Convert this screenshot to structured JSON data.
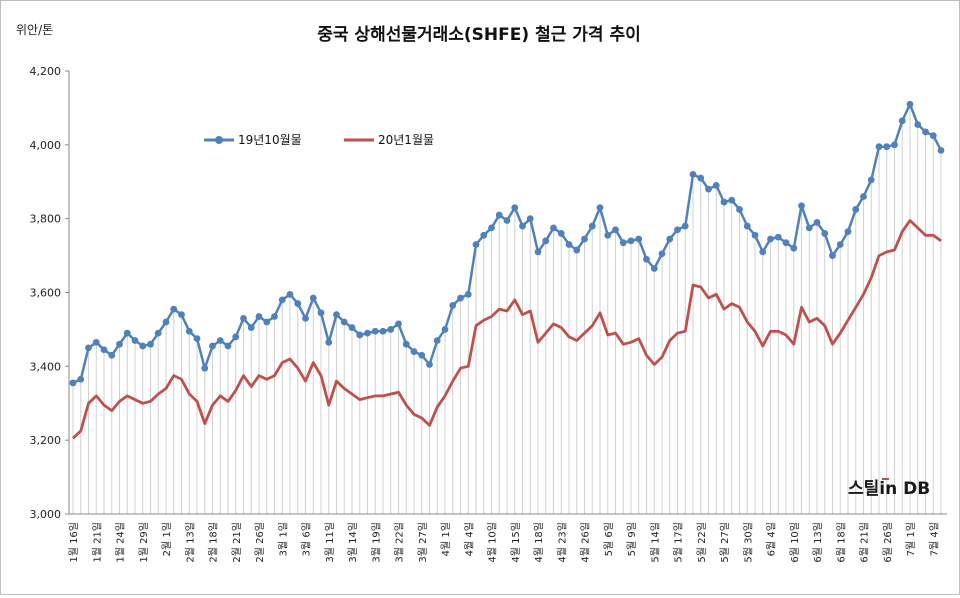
{
  "chart_data": {
    "type": "line",
    "title": "중국 상해선물거래소(SHFE) 철근 가격 추이",
    "unit_label": "위안/톤",
    "ylim": [
      3000,
      4200
    ],
    "yticks": [
      "3,000",
      "3,200",
      "3,400",
      "3,600",
      "3,800",
      "4,000",
      "4,200"
    ],
    "grid": false,
    "legend_position": "top-left",
    "brand": "스틸in DB",
    "x_labels": [
      "1월 16일",
      "1월 21일",
      "1월 24일",
      "1월 29일",
      "2월 1일",
      "2월 13일",
      "2월 18일",
      "2월 21일",
      "2월 26일",
      "3월 1일",
      "3월 6일",
      "3월 11일",
      "3월 14일",
      "3월 19일",
      "3월 22일",
      "3월 27일",
      "4월 1일",
      "4월 4일",
      "4월 10일",
      "4월 15일",
      "4월 18일",
      "4월 23일",
      "4월 26일",
      "5월 6일",
      "5월 9일",
      "5월 14일",
      "5월 17일",
      "5월 22일",
      "5월 27일",
      "5월 30일",
      "6월 4일",
      "6월 10일",
      "6월 13일",
      "6월 18일",
      "6월 21일",
      "6월 26일",
      "7월 1일",
      "7월 4일"
    ],
    "series": [
      {
        "name": "19년10월물",
        "color": "#4f81bd",
        "values": [
          3355,
          3365,
          3450,
          3465,
          3445,
          3430,
          3460,
          3490,
          3470,
          3455,
          3460,
          3490,
          3520,
          3555,
          3540,
          3495,
          3475,
          3395,
          3455,
          3470,
          3455,
          3480,
          3530,
          3505,
          3535,
          3520,
          3535,
          3580,
          3595,
          3570,
          3530,
          3585,
          3545,
          3465,
          3540,
          3520,
          3505,
          3485,
          3490,
          3495,
          3495,
          3500,
          3515,
          3460,
          3440,
          3430,
          3405,
          3470,
          3500,
          3565,
          3585,
          3595,
          3730,
          3755,
          3775,
          3810,
          3795,
          3830,
          3780,
          3800,
          3710,
          3740,
          3775,
          3760,
          3730,
          3715,
          3745,
          3780,
          3830,
          3755,
          3770,
          3735,
          3740,
          3745,
          3690,
          3665,
          3705,
          3745,
          3770,
          3780,
          3920,
          3910,
          3880,
          3890,
          3845,
          3850,
          3825,
          3780,
          3755,
          3710,
          3745,
          3750,
          3735,
          3720,
          3835,
          3775,
          3790,
          3760,
          3700,
          3730,
          3765,
          3825,
          3860,
          3905,
          3995,
          3995,
          4000,
          4065,
          4110,
          4055,
          4035,
          4025,
          3985
        ]
      },
      {
        "name": "20년1월물",
        "color": "#c0504d",
        "values": [
          3205,
          3225,
          3300,
          3320,
          3295,
          3280,
          3305,
          3320,
          3310,
          3300,
          3305,
          3325,
          3340,
          3375,
          3365,
          3325,
          3305,
          3245,
          3295,
          3320,
          3305,
          3335,
          3375,
          3345,
          3375,
          3365,
          3375,
          3410,
          3420,
          3395,
          3360,
          3410,
          3375,
          3295,
          3360,
          3340,
          3325,
          3310,
          3315,
          3320,
          3320,
          3325,
          3330,
          3295,
          3270,
          3260,
          3240,
          3290,
          3320,
          3360,
          3395,
          3400,
          3510,
          3525,
          3535,
          3555,
          3550,
          3580,
          3540,
          3550,
          3465,
          3490,
          3515,
          3505,
          3480,
          3470,
          3490,
          3510,
          3545,
          3485,
          3490,
          3460,
          3465,
          3475,
          3430,
          3405,
          3425,
          3470,
          3490,
          3495,
          3620,
          3615,
          3585,
          3595,
          3555,
          3570,
          3560,
          3520,
          3495,
          3455,
          3495,
          3495,
          3485,
          3460,
          3560,
          3520,
          3530,
          3510,
          3460,
          3490,
          3525,
          3560,
          3595,
          3640,
          3700,
          3710,
          3715,
          3765,
          3795,
          3775,
          3755,
          3755,
          3740
        ]
      }
    ]
  }
}
